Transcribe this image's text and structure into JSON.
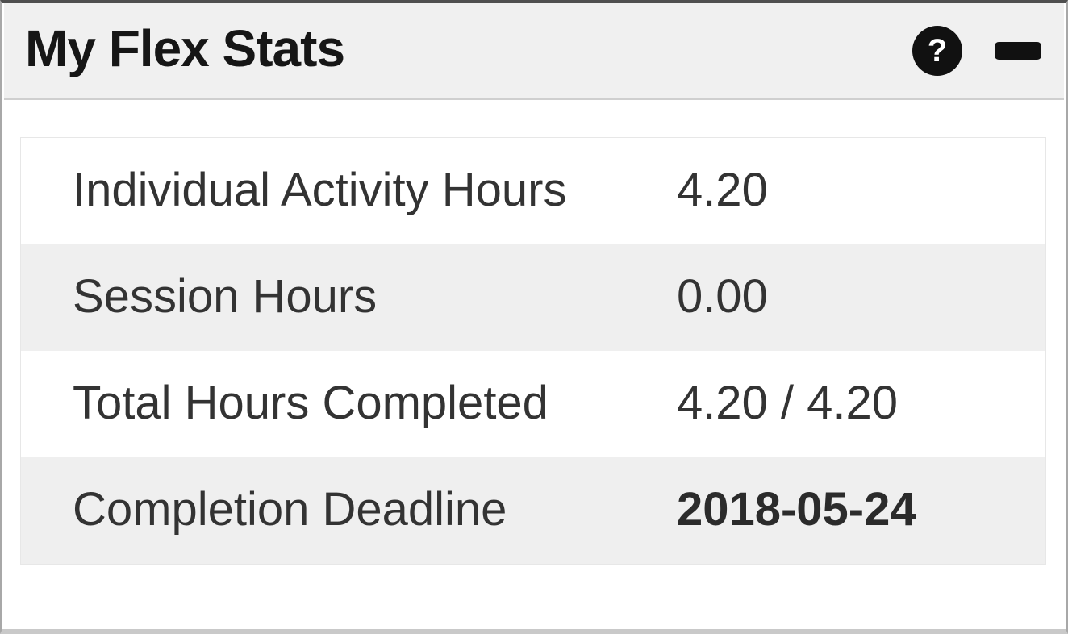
{
  "widget": {
    "title": "My Flex Stats",
    "header": {
      "help_icon_glyph": "?"
    },
    "stats": [
      {
        "label": "Individual Activity Hours",
        "value": "4.20"
      },
      {
        "label": "Session Hours",
        "value": "0.00"
      },
      {
        "label": "Total Hours Completed",
        "value": "4.20 / 4.20"
      },
      {
        "label": "Completion Deadline",
        "value": "2018-05-24"
      }
    ],
    "colors": {
      "header_bg": "#f0f0f0",
      "row_alt_bg": "#efefef",
      "icon_color": "#111111",
      "top_border": "#4f4f4f",
      "side_border": "#a8a8a8",
      "bottom_border": "#c9c9c9",
      "divider": "#cfcfcf"
    }
  }
}
